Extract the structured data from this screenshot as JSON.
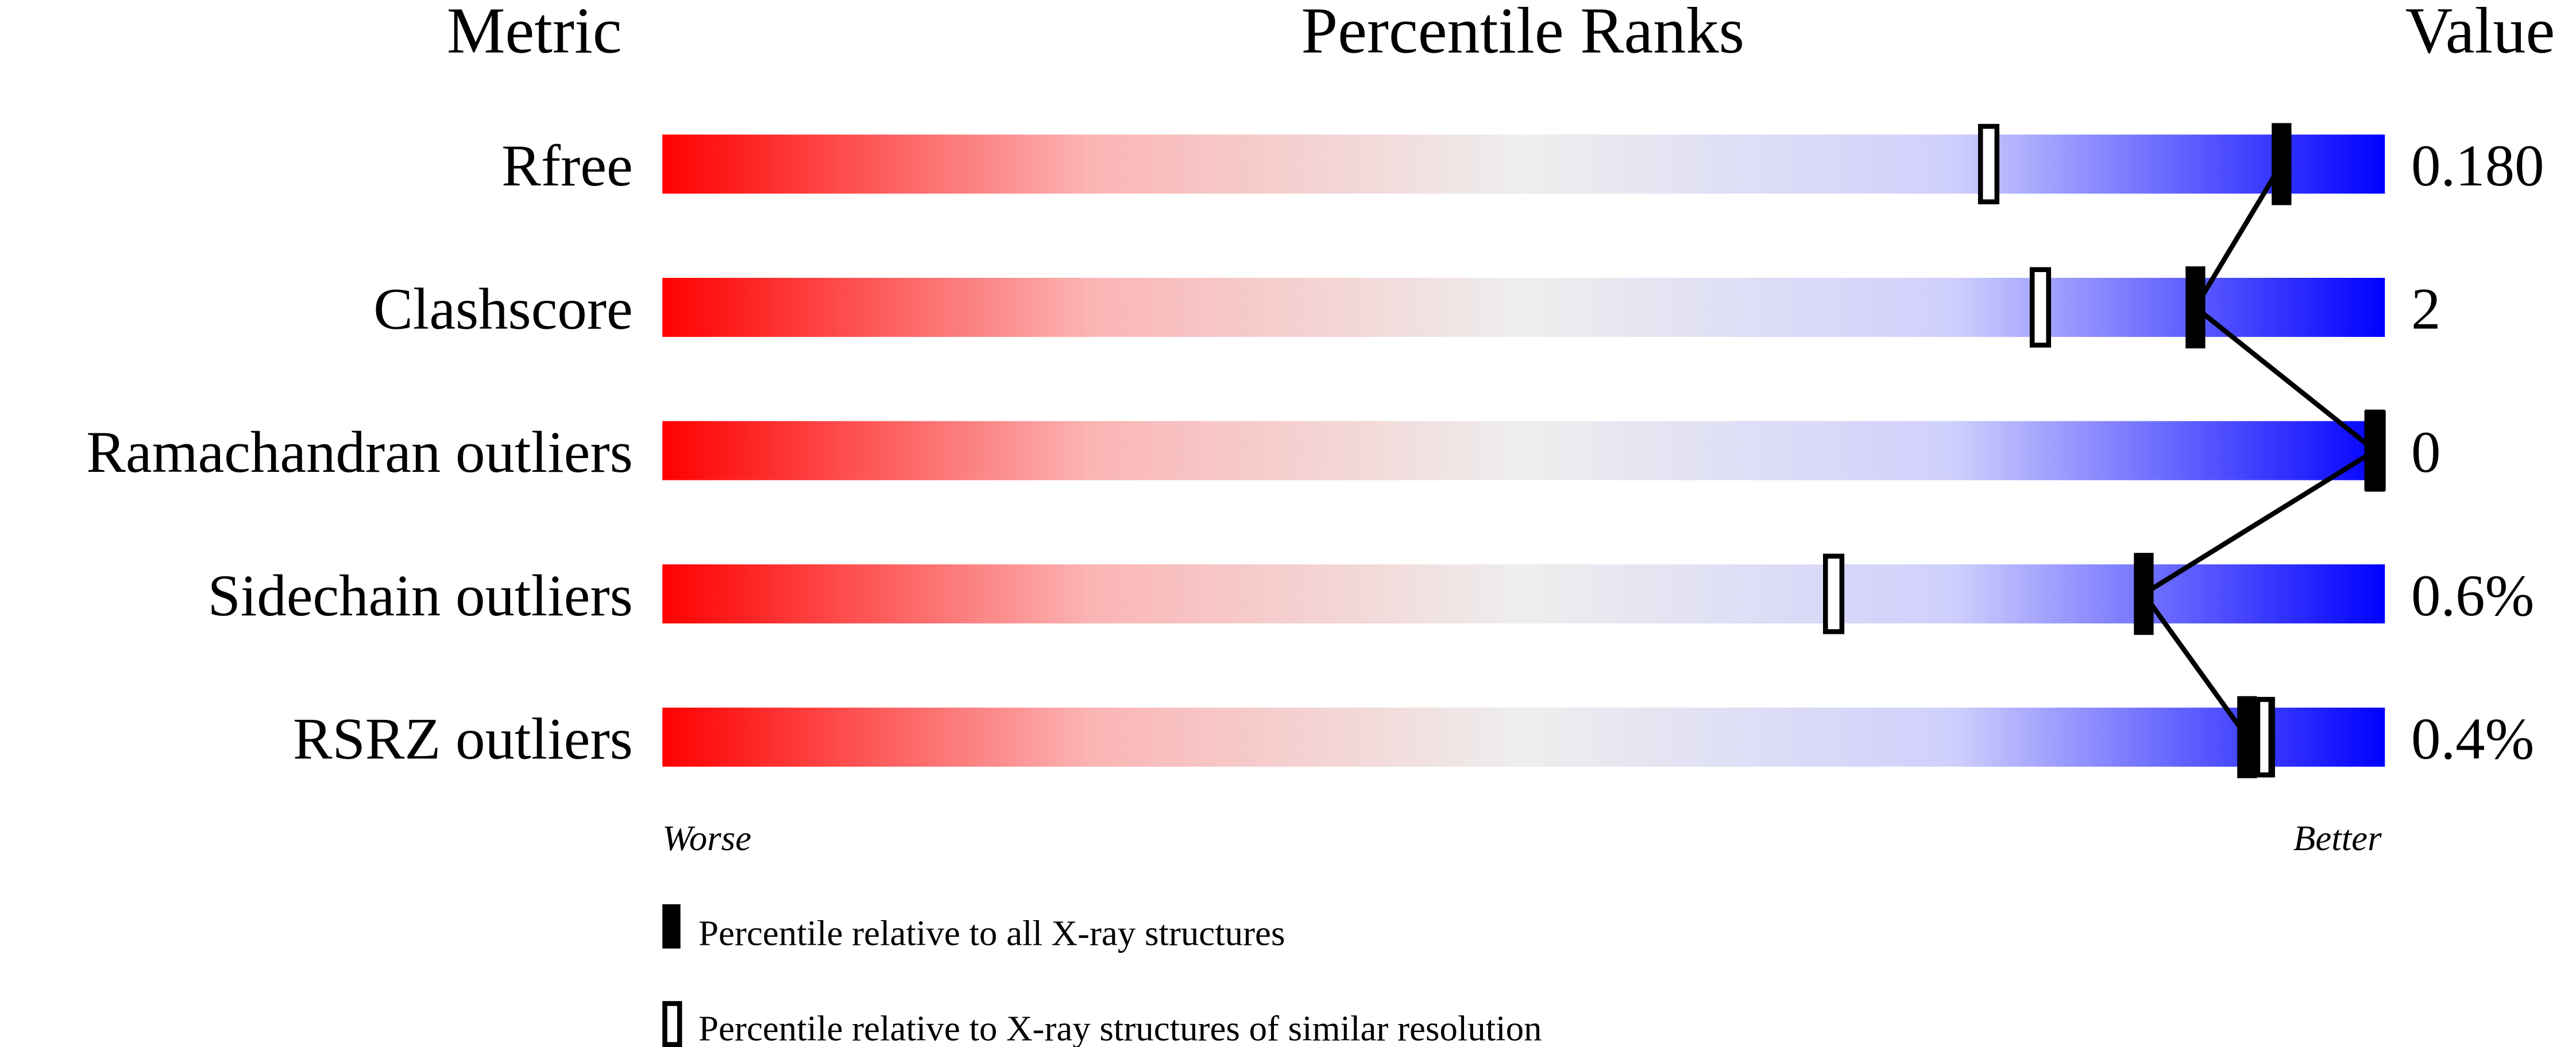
{
  "chart_data": {
    "type": "percentile-bar",
    "headers": {
      "metric": "Metric",
      "ranks": "Percentile Ranks",
      "value": "Value"
    },
    "xlim": [
      0,
      100
    ],
    "axis_labels": {
      "left": "Worse",
      "right": "Better"
    },
    "gradient_colors": [
      "#ff0000",
      "#eeeeee",
      "#0000ff"
    ],
    "rows": [
      {
        "metric": "Rfree",
        "value": "0.180",
        "percentile_all": 94,
        "percentile_similar": 77
      },
      {
        "metric": "Clashscore",
        "value": "2",
        "percentile_all": 89,
        "percentile_similar": 80
      },
      {
        "metric": "Ramachandran outliers",
        "value": "0",
        "percentile_all": 100,
        "percentile_similar": 100
      },
      {
        "metric": "Sidechain outliers",
        "value": "0.6%",
        "percentile_all": 86,
        "percentile_similar": 68
      },
      {
        "metric": "RSRZ outliers",
        "value": "0.4%",
        "percentile_all": 92,
        "percentile_similar": 93
      }
    ],
    "legend": [
      {
        "marker": "filled",
        "label": "Percentile relative to all X-ray structures"
      },
      {
        "marker": "open",
        "label": "Percentile relative to X-ray structures of similar resolution"
      }
    ]
  }
}
